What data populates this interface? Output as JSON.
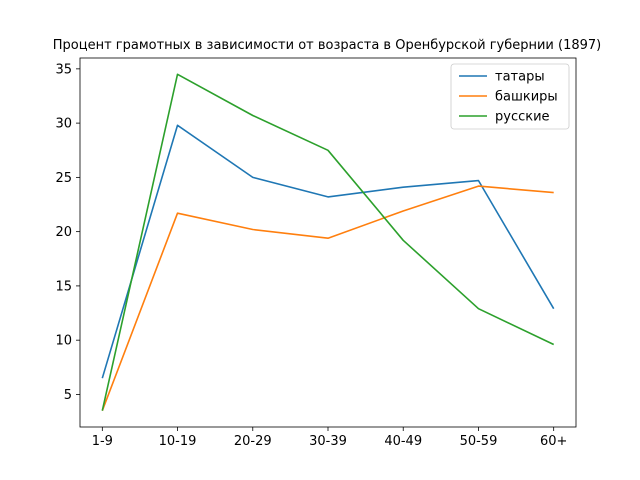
{
  "chart_data": {
    "type": "line",
    "title": "Процент грамотных в зависимости от возраста в Оренбурской губернии (1897)",
    "xlabel": "",
    "ylabel": "",
    "categories": [
      "1-9",
      "10-19",
      "20-29",
      "30-39",
      "40-49",
      "50-59",
      "60+"
    ],
    "series": [
      {
        "name": "татары",
        "color": "#1f77b4",
        "values": [
          6.5,
          29.8,
          25.0,
          23.2,
          24.1,
          24.7,
          12.9
        ]
      },
      {
        "name": "башкиры",
        "color": "#ff7f0e",
        "values": [
          3.5,
          21.7,
          20.2,
          19.4,
          21.9,
          24.2,
          23.6
        ]
      },
      {
        "name": "русские",
        "color": "#2ca02c",
        "values": [
          3.5,
          34.5,
          30.7,
          27.5,
          19.2,
          12.9,
          9.6
        ]
      }
    ],
    "yticks": [
      5,
      10,
      15,
      20,
      25,
      30,
      35
    ],
    "ylim": [
      2.0,
      36.0
    ],
    "grid": false,
    "legend_position": "top-right"
  }
}
